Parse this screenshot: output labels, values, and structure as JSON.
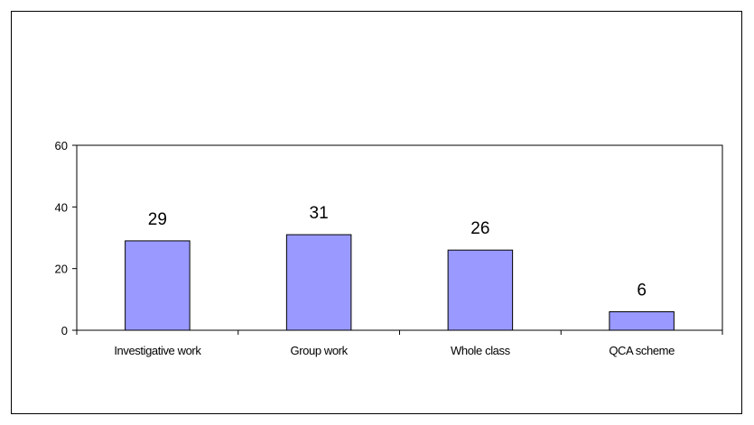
{
  "chart_data": {
    "type": "bar",
    "categories": [
      "Investigative work",
      "Group work",
      "Whole class",
      "QCA scheme"
    ],
    "values": [
      29,
      31,
      26,
      6
    ],
    "data_labels": [
      "29",
      "31",
      "26",
      "6"
    ],
    "ylim": [
      0,
      60
    ],
    "yticks": [
      0,
      20,
      40,
      60
    ],
    "ytick_labels": [
      "0",
      "20",
      "40",
      "60"
    ],
    "bar_color": "#9999ff",
    "grid": false,
    "legend": "none"
  }
}
